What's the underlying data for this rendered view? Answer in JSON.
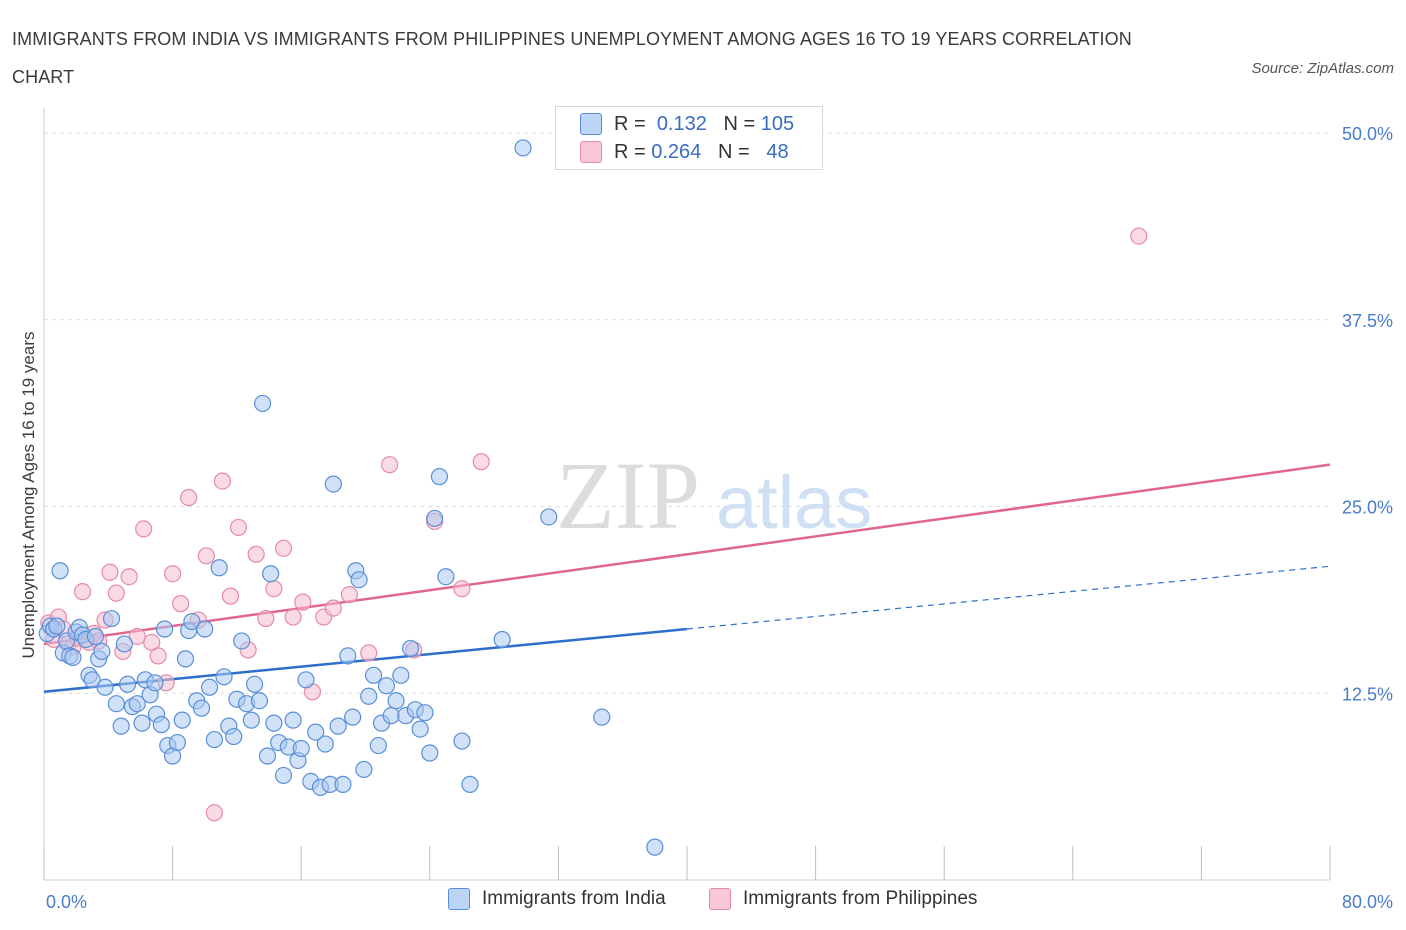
{
  "title": "IMMIGRANTS FROM INDIA VS IMMIGRANTS FROM PHILIPPINES UNEMPLOYMENT AMONG AGES 16 TO 19 YEARS CORRELATION CHART",
  "source": "Source: ZipAtlas.com",
  "watermark": {
    "zip": "ZIP",
    "atlas": "atlas"
  },
  "legend": {
    "r_label": "R =",
    "n_label": "N =",
    "india": {
      "r": "0.132",
      "n": "105"
    },
    "philippines": {
      "r": "0.264",
      "n": "48"
    }
  },
  "colors": {
    "india_fill": "#a9c8f2",
    "india_stroke": "#5a8fd8",
    "india_line": "#2e6fcc",
    "philippines_fill": "#f6bcd0",
    "philippines_stroke": "#e58aa9",
    "philippines_line": "#e06690",
    "tick_text": "#4a7cc9"
  },
  "chart_data": {
    "type": "scatter",
    "title": "IMMIGRANTS FROM INDIA VS IMMIGRANTS FROM PHILIPPINES UNEMPLOYMENT AMONG AGES 16 TO 19 YEARS CORRELATION CHART",
    "xlabel": "",
    "ylabel": "Unemployment Among Ages 16 to 19 years",
    "xlim": [
      0,
      80
    ],
    "ylim": [
      0,
      50
    ],
    "x_tick_labels": [
      "0.0%",
      "80.0%"
    ],
    "y_tick_values": [
      12.5,
      25.0,
      37.5,
      50.0
    ],
    "y_tick_labels": [
      "12.5%",
      "25.0%",
      "37.5%",
      "50.0%"
    ],
    "grid": "horizontal dashed",
    "legend_position": "top-center",
    "series": [
      {
        "name": "Immigrants from India",
        "r": 0.132,
        "n": 105,
        "trend": {
          "x0": 0,
          "y0": 12.6,
          "x1": 40,
          "y1": 16.8,
          "dashed_to_x": 80,
          "dashed_to_y": 21.0
        },
        "points": [
          [
            0.2,
            16.5
          ],
          [
            0.4,
            17.0
          ],
          [
            0.6,
            16.8
          ],
          [
            0.8,
            17.0
          ],
          [
            1.0,
            20.7
          ],
          [
            1.2,
            15.2
          ],
          [
            1.4,
            16.0
          ],
          [
            1.6,
            15.0
          ],
          [
            1.8,
            14.9
          ],
          [
            2.0,
            16.6
          ],
          [
            2.2,
            16.9
          ],
          [
            2.4,
            16.4
          ],
          [
            2.6,
            16.1
          ],
          [
            2.8,
            13.7
          ],
          [
            3.0,
            13.4
          ],
          [
            3.2,
            16.3
          ],
          [
            3.4,
            14.8
          ],
          [
            3.6,
            15.3
          ],
          [
            3.8,
            12.9
          ],
          [
            4.2,
            17.5
          ],
          [
            4.5,
            11.8
          ],
          [
            4.8,
            10.3
          ],
          [
            5.0,
            15.8
          ],
          [
            5.2,
            13.1
          ],
          [
            5.5,
            11.6
          ],
          [
            5.8,
            11.8
          ],
          [
            6.1,
            10.5
          ],
          [
            6.3,
            13.4
          ],
          [
            6.6,
            12.4
          ],
          [
            6.9,
            13.2
          ],
          [
            7.0,
            11.1
          ],
          [
            7.3,
            10.4
          ],
          [
            7.5,
            16.8
          ],
          [
            7.7,
            9.0
          ],
          [
            8.0,
            8.3
          ],
          [
            8.3,
            9.2
          ],
          [
            8.6,
            10.7
          ],
          [
            8.8,
            14.8
          ],
          [
            9.0,
            16.7
          ],
          [
            9.2,
            17.3
          ],
          [
            9.5,
            12.0
          ],
          [
            9.8,
            11.5
          ],
          [
            10.0,
            16.8
          ],
          [
            10.3,
            12.9
          ],
          [
            10.6,
            9.4
          ],
          [
            10.9,
            20.9
          ],
          [
            11.2,
            13.6
          ],
          [
            11.5,
            10.3
          ],
          [
            11.8,
            9.6
          ],
          [
            12.0,
            12.1
          ],
          [
            12.3,
            16.0
          ],
          [
            12.6,
            11.8
          ],
          [
            12.9,
            10.7
          ],
          [
            13.1,
            13.1
          ],
          [
            13.4,
            12.0
          ],
          [
            13.6,
            31.9
          ],
          [
            13.9,
            8.3
          ],
          [
            14.1,
            20.5
          ],
          [
            14.3,
            10.5
          ],
          [
            14.6,
            9.2
          ],
          [
            14.9,
            7.0
          ],
          [
            15.2,
            8.9
          ],
          [
            15.5,
            10.7
          ],
          [
            15.8,
            8.0
          ],
          [
            16.0,
            8.8
          ],
          [
            16.3,
            13.4
          ],
          [
            16.6,
            6.6
          ],
          [
            16.9,
            9.9
          ],
          [
            17.2,
            6.2
          ],
          [
            17.5,
            9.1
          ],
          [
            17.8,
            6.4
          ],
          [
            18.0,
            26.5
          ],
          [
            18.3,
            10.3
          ],
          [
            18.6,
            6.4
          ],
          [
            18.9,
            15.0
          ],
          [
            19.2,
            10.9
          ],
          [
            19.4,
            20.7
          ],
          [
            19.6,
            20.1
          ],
          [
            19.9,
            7.4
          ],
          [
            20.2,
            12.3
          ],
          [
            20.5,
            13.7
          ],
          [
            20.8,
            9.0
          ],
          [
            21.0,
            10.5
          ],
          [
            21.3,
            13.0
          ],
          [
            21.6,
            11.0
          ],
          [
            21.9,
            12.0
          ],
          [
            22.2,
            13.7
          ],
          [
            22.5,
            11.0
          ],
          [
            22.8,
            15.5
          ],
          [
            23.1,
            11.4
          ],
          [
            23.4,
            10.1
          ],
          [
            23.7,
            11.2
          ],
          [
            24.0,
            8.5
          ],
          [
            24.3,
            24.2
          ],
          [
            24.6,
            27.0
          ],
          [
            25.0,
            20.3
          ],
          [
            26.0,
            9.3
          ],
          [
            26.5,
            6.4
          ],
          [
            28.5,
            16.1
          ],
          [
            29.8,
            49.0
          ],
          [
            31.4,
            24.3
          ],
          [
            34.7,
            10.9
          ],
          [
            38.0,
            2.2
          ]
        ]
      },
      {
        "name": "Immigrants from Philippines",
        "r": 0.264,
        "n": 48,
        "trend": {
          "x0": 0,
          "y0": 15.8,
          "x1": 80,
          "y1": 27.8
        },
        "points": [
          [
            0.3,
            17.2
          ],
          [
            0.6,
            16.1
          ],
          [
            0.9,
            17.6
          ],
          [
            1.2,
            16.8
          ],
          [
            1.5,
            15.8
          ],
          [
            1.8,
            15.6
          ],
          [
            2.1,
            16.2
          ],
          [
            2.4,
            19.3
          ],
          [
            2.8,
            15.9
          ],
          [
            3.1,
            16.5
          ],
          [
            3.4,
            16.0
          ],
          [
            3.8,
            17.4
          ],
          [
            4.1,
            20.6
          ],
          [
            4.5,
            19.2
          ],
          [
            4.9,
            15.3
          ],
          [
            5.3,
            20.3
          ],
          [
            5.8,
            16.3
          ],
          [
            6.2,
            23.5
          ],
          [
            6.7,
            15.9
          ],
          [
            7.1,
            15.0
          ],
          [
            7.6,
            13.2
          ],
          [
            8.0,
            20.5
          ],
          [
            8.5,
            18.5
          ],
          [
            9.0,
            25.6
          ],
          [
            9.6,
            17.4
          ],
          [
            10.1,
            21.7
          ],
          [
            10.6,
            4.5
          ],
          [
            11.1,
            26.7
          ],
          [
            11.6,
            19.0
          ],
          [
            12.1,
            23.6
          ],
          [
            12.7,
            15.4
          ],
          [
            13.2,
            21.8
          ],
          [
            13.8,
            17.5
          ],
          [
            14.3,
            19.5
          ],
          [
            14.9,
            22.2
          ],
          [
            15.5,
            17.6
          ],
          [
            16.1,
            18.6
          ],
          [
            16.7,
            12.6
          ],
          [
            17.4,
            17.6
          ],
          [
            18.0,
            18.2
          ],
          [
            19.0,
            19.1
          ],
          [
            20.2,
            15.2
          ],
          [
            21.5,
            27.8
          ],
          [
            23.0,
            15.4
          ],
          [
            24.3,
            24.0
          ],
          [
            26.0,
            19.5
          ],
          [
            27.2,
            28.0
          ],
          [
            68.1,
            43.1
          ]
        ]
      }
    ]
  },
  "bottom_legend": {
    "india": "Immigrants from India",
    "philippines": "Immigrants from Philippines"
  }
}
